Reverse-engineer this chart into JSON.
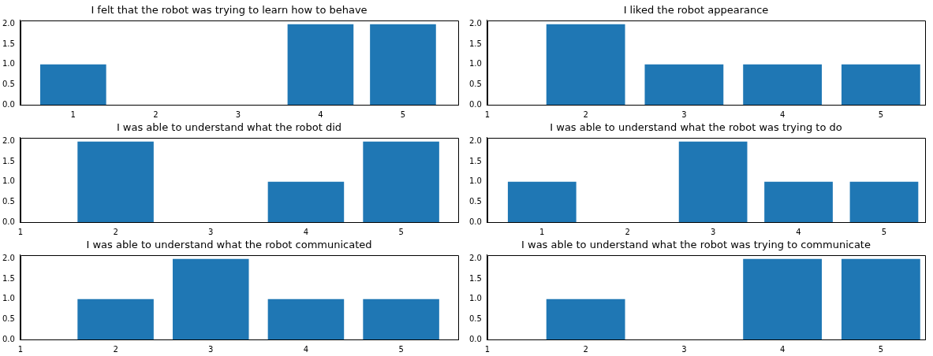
{
  "chart_data": [
    {
      "type": "bar",
      "title": "I felt that the robot was trying to learn how to behave",
      "x": [
        1,
        4,
        5
      ],
      "values": [
        1,
        2,
        2
      ],
      "color": "#1f77b4",
      "xlim": [
        0.36,
        5.67
      ],
      "xticks": [
        1,
        2,
        3,
        4,
        5
      ],
      "ylim": [
        0,
        2.1
      ],
      "yticks": [
        {
          "value": 0,
          "label": "0.0"
        },
        {
          "value": 0.5,
          "label": "0.5"
        },
        {
          "value": 1,
          "label": "1.0"
        },
        {
          "value": 1.5,
          "label": "1.5"
        },
        {
          "value": 2,
          "label": "2.0"
        }
      ],
      "grid": false,
      "legend": false
    },
    {
      "type": "bar",
      "title": "I liked the robot appearance",
      "x": [
        2,
        3,
        4,
        5
      ],
      "values": [
        2,
        1,
        1,
        1
      ],
      "color": "#1f77b4",
      "xlim": [
        1,
        5.45
      ],
      "xticks": [
        1,
        2,
        3,
        4,
        5
      ],
      "ylim": [
        0,
        2.1
      ],
      "yticks": [
        {
          "value": 0,
          "label": "0.0"
        },
        {
          "value": 0.5,
          "label": "0.5"
        },
        {
          "value": 1,
          "label": "1.0"
        },
        {
          "value": 1.5,
          "label": "1.5"
        },
        {
          "value": 2,
          "label": "2.0"
        }
      ],
      "grid": false,
      "legend": false
    },
    {
      "type": "bar",
      "title": "I was able to understand what the robot did",
      "x": [
        2,
        4,
        5
      ],
      "values": [
        2,
        1,
        2
      ],
      "color": "#1f77b4",
      "xlim": [
        1,
        5.6
      ],
      "xticks": [
        1,
        2,
        3,
        4,
        5
      ],
      "ylim": [
        0,
        2.1
      ],
      "yticks": [
        {
          "value": 0,
          "label": "0.0"
        },
        {
          "value": 0.5,
          "label": "0.5"
        },
        {
          "value": 1,
          "label": "1.0"
        },
        {
          "value": 1.5,
          "label": "1.5"
        },
        {
          "value": 2,
          "label": "2.0"
        }
      ],
      "grid": false,
      "legend": false
    },
    {
      "type": "bar",
      "title": "I was able to understand what the robot was trying to do",
      "x": [
        1,
        3,
        4,
        5
      ],
      "values": [
        1,
        2,
        1,
        1
      ],
      "color": "#1f77b4",
      "xlim": [
        0.36,
        5.48
      ],
      "xticks": [
        1,
        2,
        3,
        4,
        5
      ],
      "ylim": [
        0,
        2.1
      ],
      "yticks": [
        {
          "value": 0,
          "label": "0.0"
        },
        {
          "value": 0.5,
          "label": "0.5"
        },
        {
          "value": 1,
          "label": "1.0"
        },
        {
          "value": 1.5,
          "label": "1.5"
        },
        {
          "value": 2,
          "label": "2.0"
        }
      ],
      "grid": false,
      "legend": false
    },
    {
      "type": "bar",
      "title": "I was able to understand what the robot communicated",
      "x": [
        2,
        3,
        4,
        5
      ],
      "values": [
        1,
        2,
        1,
        1
      ],
      "color": "#1f77b4",
      "xlim": [
        1,
        5.6
      ],
      "xticks": [
        1,
        2,
        3,
        4,
        5
      ],
      "ylim": [
        0,
        2.1
      ],
      "yticks": [
        {
          "value": 0,
          "label": "0.0"
        },
        {
          "value": 0.5,
          "label": "0.5"
        },
        {
          "value": 1,
          "label": "1.0"
        },
        {
          "value": 1.5,
          "label": "1.5"
        },
        {
          "value": 2,
          "label": "2.0"
        }
      ],
      "grid": false,
      "legend": false
    },
    {
      "type": "bar",
      "title": "I was able to understand what the robot was trying to communicate",
      "x": [
        2,
        4,
        5
      ],
      "values": [
        1,
        2,
        2
      ],
      "color": "#1f77b4",
      "xlim": [
        1,
        5.45
      ],
      "xticks": [
        1,
        2,
        3,
        4,
        5
      ],
      "ylim": [
        0,
        2.1
      ],
      "yticks": [
        {
          "value": 0,
          "label": "0.0"
        },
        {
          "value": 0.5,
          "label": "0.5"
        },
        {
          "value": 1,
          "label": "1.0"
        },
        {
          "value": 1.5,
          "label": "1.5"
        },
        {
          "value": 2,
          "label": "2.0"
        }
      ],
      "grid": false,
      "legend": false
    }
  ]
}
